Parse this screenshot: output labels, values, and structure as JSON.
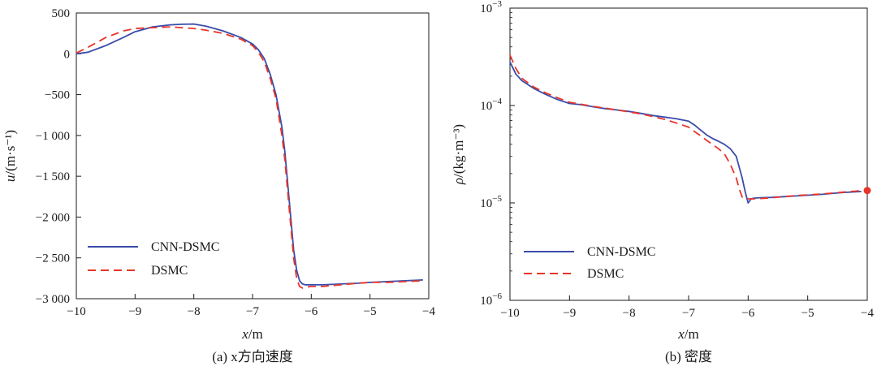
{
  "chart_data": [
    {
      "type": "line",
      "caption": "(a) x方向速度",
      "xlabel_var": "x",
      "xlabel_unit": "/m",
      "ylabel_var": "u",
      "ylabel_unit": "/(m·s⁻¹)",
      "xlim": [
        -10,
        -4
      ],
      "ylim": [
        -3000,
        500
      ],
      "yscale": "linear",
      "xticks": [
        -10,
        -9,
        -8,
        -7,
        -6,
        -5,
        -4
      ],
      "xtick_labels": [
        "−10",
        "−9",
        "−8",
        "−7",
        "−6",
        "−5",
        "−4"
      ],
      "yticks": [
        500,
        0,
        -500,
        -1000,
        -1500,
        -2000,
        -2500,
        -3000
      ],
      "ytick_labels": [
        "500",
        "0",
        "−500",
        "−1 000",
        "−1 500",
        "−2 000",
        "−2 500",
        "−3 000"
      ],
      "legend": [
        "CNN-DSMC",
        "DSMC"
      ],
      "legend_position": "lower-left",
      "series": [
        {
          "name": "CNN-DSMC",
          "color": "#3a4ca8",
          "style": "solid",
          "x": [
            -10,
            -9.8,
            -9.5,
            -9.2,
            -9.0,
            -8.7,
            -8.4,
            -8.2,
            -8.0,
            -7.8,
            -7.5,
            -7.2,
            -7.0,
            -6.9,
            -6.8,
            -6.7,
            -6.6,
            -6.5,
            -6.45,
            -6.4,
            -6.35,
            -6.3,
            -6.25,
            -6.2,
            -6.15,
            -6.1,
            -6.0,
            -5.8,
            -5.5,
            -5.2,
            -5.0,
            -4.7,
            -4.4,
            -4.1
          ],
          "y": [
            0,
            20,
            100,
            200,
            270,
            330,
            355,
            362,
            365,
            340,
            280,
            200,
            120,
            50,
            -60,
            -250,
            -500,
            -900,
            -1200,
            -1600,
            -2000,
            -2400,
            -2650,
            -2780,
            -2820,
            -2830,
            -2830,
            -2830,
            -2820,
            -2810,
            -2800,
            -2790,
            -2780,
            -2770
          ]
        },
        {
          "name": "DSMC",
          "color": "#e8352b",
          "style": "dashed",
          "x": [
            -10,
            -9.8,
            -9.5,
            -9.2,
            -9.0,
            -8.7,
            -8.4,
            -8.2,
            -8.0,
            -7.8,
            -7.5,
            -7.2,
            -7.0,
            -6.9,
            -6.8,
            -6.7,
            -6.6,
            -6.5,
            -6.45,
            -6.4,
            -6.35,
            -6.3,
            -6.25,
            -6.2,
            -6.15,
            -6.1,
            -6.0,
            -5.8,
            -5.5,
            -5.2,
            -5.0,
            -4.7,
            -4.4,
            -4.1
          ],
          "y": [
            10,
            80,
            200,
            280,
            310,
            320,
            330,
            320,
            310,
            290,
            250,
            180,
            100,
            20,
            -100,
            -300,
            -550,
            -1000,
            -1300,
            -1700,
            -2100,
            -2500,
            -2750,
            -2850,
            -2870,
            -2860,
            -2850,
            -2850,
            -2830,
            -2810,
            -2800,
            -2800,
            -2790,
            -2780
          ]
        }
      ]
    },
    {
      "type": "line",
      "caption": "(b) 密度",
      "xlabel_var": "x",
      "xlabel_unit": "/m",
      "ylabel_var": "ρ",
      "ylabel_unit": "/(kg·m⁻³)",
      "xlim": [
        -10,
        -4
      ],
      "ylim": [
        1e-06,
        0.001
      ],
      "yscale": "log",
      "xticks": [
        -10,
        -9,
        -8,
        -7,
        -6,
        -5,
        -4
      ],
      "xtick_labels": [
        "−10",
        "−9",
        "−8",
        "−7",
        "−6",
        "−5",
        "−4"
      ],
      "yticks": [
        0.001,
        0.0001,
        1e-05,
        1e-06
      ],
      "ytick_base": "10",
      "ytick_exponents": [
        "−3",
        "−4",
        "−5",
        "−6"
      ],
      "legend": [
        "CNN-DSMC",
        "DSMC"
      ],
      "legend_position": "lower-left",
      "series": [
        {
          "name": "CNN-DSMC",
          "color": "#3a4ca8",
          "style": "solid",
          "x": [
            -10,
            -9.9,
            -9.8,
            -9.6,
            -9.4,
            -9.2,
            -9.0,
            -8.8,
            -8.6,
            -8.4,
            -8.2,
            -8.0,
            -7.8,
            -7.6,
            -7.4,
            -7.2,
            -7.0,
            -6.9,
            -6.8,
            -6.7,
            -6.6,
            -6.5,
            -6.4,
            -6.3,
            -6.2,
            -6.1,
            -6.05,
            -6.0,
            -5.95,
            -5.9,
            -5.8,
            -5.6,
            -5.4,
            -5.2,
            -5.0,
            -4.8,
            -4.6,
            -4.4,
            -4.2,
            -4.1
          ],
          "y": [
            0.00028,
            0.00021,
            0.00018,
            0.00015,
            0.00013,
            0.000115,
            0.000105,
            0.000102,
            9.7e-05,
            9.3e-05,
            9e-05,
            8.7e-05,
            8.3e-05,
            7.9e-05,
            7.6e-05,
            7.3e-05,
            6.9e-05,
            6.3e-05,
            5.6e-05,
            5e-05,
            4.6e-05,
            4.3e-05,
            4e-05,
            3.6e-05,
            3e-05,
            1.8e-05,
            1.3e-05,
            1e-05,
            1.1e-05,
            1.12e-05,
            1.13e-05,
            1.14e-05,
            1.16e-05,
            1.18e-05,
            1.2e-05,
            1.22e-05,
            1.25e-05,
            1.28e-05,
            1.3e-05,
            1.31e-05
          ]
        },
        {
          "name": "DSMC",
          "color": "#e8352b",
          "style": "dashed",
          "x": [
            -10,
            -9.9,
            -9.8,
            -9.6,
            -9.4,
            -9.2,
            -9.0,
            -8.8,
            -8.6,
            -8.4,
            -8.2,
            -8.0,
            -7.8,
            -7.6,
            -7.4,
            -7.2,
            -7.0,
            -6.9,
            -6.8,
            -6.7,
            -6.6,
            -6.5,
            -6.4,
            -6.3,
            -6.2,
            -6.15,
            -6.1,
            -6.05,
            -6.0,
            -5.95,
            -5.9,
            -5.8,
            -5.6,
            -5.4,
            -5.2,
            -5.0,
            -4.8,
            -4.6,
            -4.4,
            -4.2,
            -4.1
          ],
          "y": [
            0.00033,
            0.00024,
            0.00019,
            0.000155,
            0.000135,
            0.00012,
            0.000108,
            0.000103,
            9.8e-05,
            9.4e-05,
            9e-05,
            8.6e-05,
            8.2e-05,
            7.7e-05,
            7.2e-05,
            6.6e-05,
            6e-05,
            5.4e-05,
            4.9e-05,
            4.4e-05,
            4e-05,
            3.6e-05,
            3.2e-05,
            2.5e-05,
            1.8e-05,
            1.4e-05,
            1.15e-05,
            1.1e-05,
            1.1e-05,
            1.1e-05,
            1.1e-05,
            1.11e-05,
            1.13e-05,
            1.16e-05,
            1.19e-05,
            1.21e-05,
            1.23e-05,
            1.26e-05,
            1.29e-05,
            1.32e-05,
            1.34e-05
          ]
        }
      ],
      "annotations": [
        {
          "kind": "marker",
          "x": -4.0,
          "y": 1.34e-05,
          "color": "#e8352b"
        }
      ]
    }
  ]
}
